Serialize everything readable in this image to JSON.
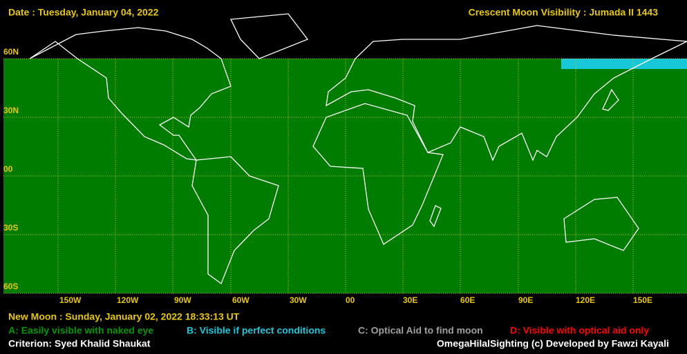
{
  "header": {
    "date": "Date : Tuesday, January 04, 2022",
    "title": "Crescent Moon Visibility : Jumada II  1443"
  },
  "lat_labels": [
    "60N",
    "30N",
    "00",
    "30S",
    "60S"
  ],
  "lon_labels": [
    "150W",
    "120W",
    "90W",
    "60W",
    "30W",
    "00",
    "30E",
    "60E",
    "90E",
    "120E",
    "150E"
  ],
  "footer": {
    "new_moon": "New Moon : Sunday, January 02, 2022  18:33:13  UT",
    "legend": [
      "A: Easily visible with naked eye",
      "B: Visible if perfect conditions",
      "C: Optical Aid to find moon",
      "D: Visible with optical aid only"
    ],
    "criterion": "Criterion: Syed Khalid Shaukat",
    "credit": "OmegaHilalSighting  (c)  Developed by Fawzi Kayali"
  }
}
